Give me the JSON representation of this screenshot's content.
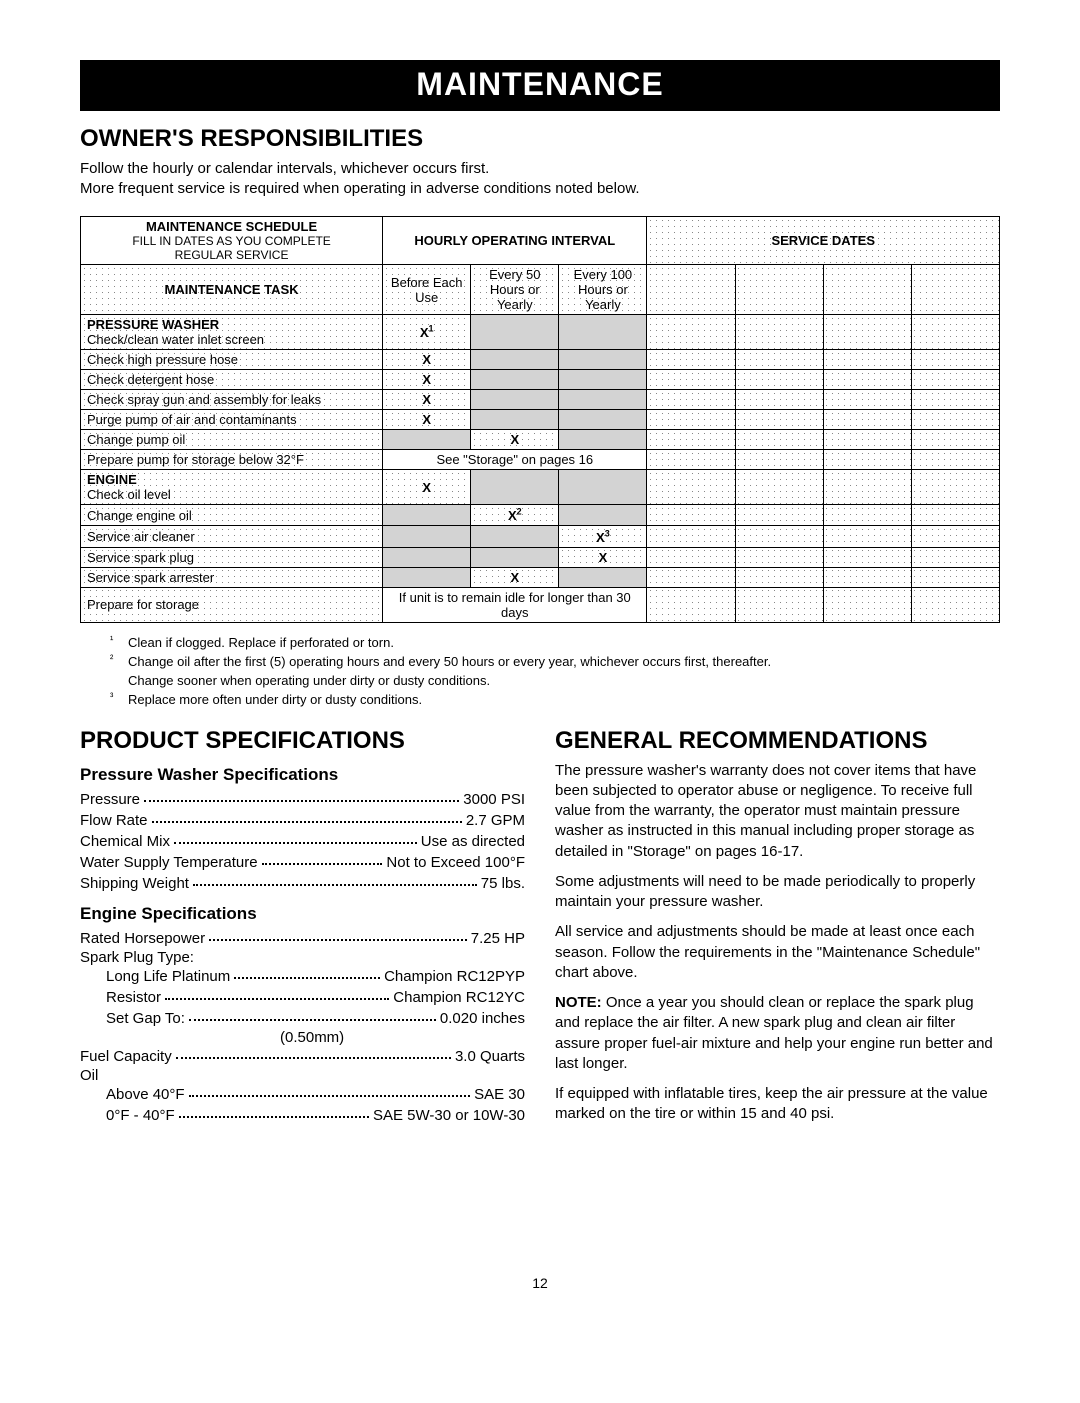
{
  "banner": "MAINTENANCE",
  "section1": {
    "heading": "OWNER'S RESPONSIBILITIES",
    "p1": "Follow the hourly or calendar intervals, whichever occurs first.",
    "p2": "More frequent service is required when operating in adverse conditions noted below."
  },
  "schedule": {
    "h_main1a": "MAINTENANCE SCHEDULE",
    "h_main1b": "FILL IN DATES AS YOU COMPLETE",
    "h_main1c": "REGULAR SERVICE",
    "h_interval": "HOURLY OPERATING INTERVAL",
    "h_dates": "SERVICE DATES",
    "h_task": "MAINTENANCE TASK",
    "h_before": "Before Each Use",
    "h_every50": "Every 50 Hours or Yearly",
    "h_every100": "Every 100 Hours or Yearly",
    "rows": [
      {
        "task_h": "PRESSURE WASHER",
        "task_s": "Check/clean water inlet screen",
        "c": [
          "X¹",
          "g",
          "g"
        ],
        "note": ""
      },
      {
        "task_h": "",
        "task_s": "Check high pressure hose",
        "c": [
          "X",
          "g",
          "g"
        ],
        "note": ""
      },
      {
        "task_h": "",
        "task_s": "Check detergent hose",
        "c": [
          "X",
          "g",
          "g"
        ],
        "note": ""
      },
      {
        "task_h": "",
        "task_s": "Check spray gun and assembly for leaks",
        "c": [
          "X",
          "g",
          "g"
        ],
        "note": ""
      },
      {
        "task_h": "",
        "task_s": "Purge pump of air and contaminants",
        "c": [
          "X",
          "g",
          "g"
        ],
        "note": ""
      },
      {
        "task_h": "",
        "task_s": "Change pump oil",
        "c": [
          "g",
          "X",
          "g"
        ],
        "note": ""
      },
      {
        "task_h": "",
        "task_s": "Prepare pump for storage below 32°F",
        "c": [
          "",
          "",
          ""
        ],
        "note": "See \"Storage\" on pages 16"
      },
      {
        "task_h": "ENGINE",
        "task_s": "Check oil level",
        "c": [
          "X",
          "g",
          "g"
        ],
        "note": ""
      },
      {
        "task_h": "",
        "task_s": "Change engine oil",
        "c": [
          "g",
          "X²",
          "g"
        ],
        "note": ""
      },
      {
        "task_h": "",
        "task_s": "Service air cleaner",
        "c": [
          "g",
          "g",
          "X³"
        ],
        "note": ""
      },
      {
        "task_h": "",
        "task_s": "Service spark plug",
        "c": [
          "g",
          "g",
          "X"
        ],
        "note": ""
      },
      {
        "task_h": "",
        "task_s": "Service spark arrester",
        "c": [
          "g",
          "X",
          "g"
        ],
        "note": ""
      },
      {
        "task_h": "",
        "task_s": "Prepare for storage",
        "c": [
          "",
          "",
          ""
        ],
        "note": "If unit is to remain idle for longer than 30 days"
      }
    ]
  },
  "footnotes": {
    "n1": "Clean if clogged. Replace if perforated or torn.",
    "n2a": "Change oil after the first (5) operating hours and every 50 hours or every year, whichever occurs first, thereafter.",
    "n2b": "Change sooner when operating under dirty or dusty conditions.",
    "n3": "Replace more often under dirty or dusty conditions."
  },
  "specs": {
    "heading": "PRODUCT SPECIFICATIONS",
    "pw_h": "Pressure Washer Specifications",
    "pw": [
      {
        "l": "Pressure",
        "v": "3000 PSI"
      },
      {
        "l": "Flow Rate",
        "v": "2.7 GPM"
      },
      {
        "l": "Chemical Mix",
        "v": "Use as directed"
      },
      {
        "l": "Water Supply Temperature",
        "v": "Not to Exceed 100°F"
      },
      {
        "l": "Shipping Weight",
        "v": "75 lbs."
      }
    ],
    "eng_h": "Engine Specifications",
    "eng_hp": {
      "l": "Rated Horsepower",
      "v": "7.25 HP"
    },
    "eng_plug_h": "Spark Plug Type:",
    "eng_plug": [
      {
        "l": "Long Life Platinum",
        "v": "Champion RC12PYP"
      },
      {
        "l": "Resistor",
        "v": "Champion RC12YC"
      },
      {
        "l": "Set Gap To:",
        "v": "0.020 inches"
      }
    ],
    "eng_gap_sub": "(0.50mm)",
    "eng_fuel": {
      "l": "Fuel Capacity",
      "v": "3.0 Quarts"
    },
    "eng_oil_h": "Oil",
    "eng_oil": [
      {
        "l": "Above 40°F",
        "v": "SAE 30"
      },
      {
        "l": "0°F - 40°F",
        "v": "SAE 5W-30 or 10W-30"
      }
    ]
  },
  "rec": {
    "heading": "GENERAL RECOMMENDATIONS",
    "p1": "The pressure washer's warranty does not cover items that have been subjected to operator abuse or negligence. To receive full value from the warranty, the operator must maintain pressure washer as instructed in this manual including proper storage as detailed in \"Storage\" on pages 16-17.",
    "p2": "Some adjustments will need to be made periodically to properly maintain your pressure washer.",
    "p3": "All service and adjustments should be made at least once each season. Follow the requirements in the \"Maintenance Schedule\" chart above.",
    "p4_b": "NOTE:",
    "p4": " Once a year you should clean or replace the spark plug and replace the air filter. A new spark plug and clean air filter assure proper fuel-air mixture and help your engine run better and last longer.",
    "p5": "If equipped with inflatable tires, keep the air pressure at the value marked on the tire or within 15 and 40 psi."
  },
  "pagenum": "12"
}
